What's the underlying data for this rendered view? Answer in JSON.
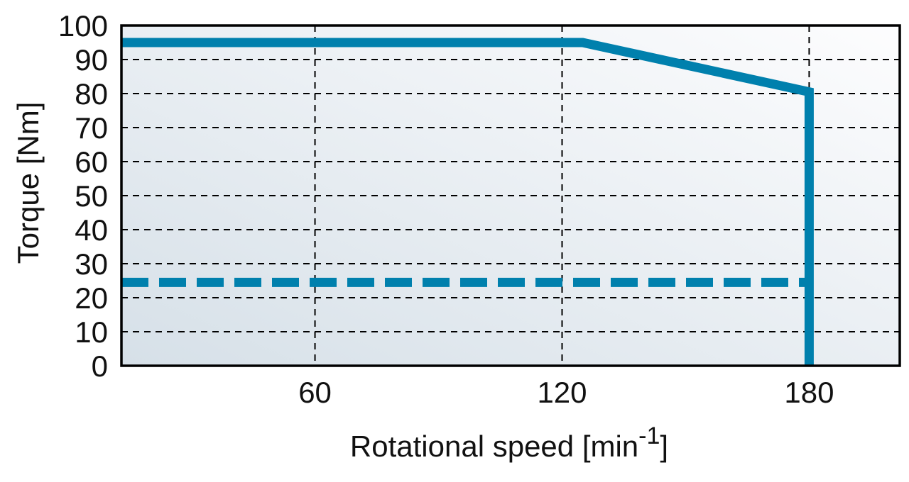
{
  "chart_data": {
    "type": "line",
    "title": "",
    "xlabel": "Rotational speed [min",
    "xlabel_superscript": "-1",
    "xlabel_suffix": "]",
    "ylabel": "Torque [Nm]",
    "xlim": [
      13,
      202
    ],
    "ylim": [
      0,
      100
    ],
    "x_ticks": [
      60,
      120,
      180
    ],
    "y_ticks": [
      0,
      10,
      20,
      30,
      40,
      50,
      60,
      70,
      80,
      90,
      100
    ],
    "grid": true,
    "series": [
      {
        "style": "solid",
        "color": "#0080ad",
        "points": [
          [
            13,
            95
          ],
          [
            125,
            95
          ],
          [
            180,
            80.5
          ],
          [
            180,
            0
          ]
        ]
      },
      {
        "style": "dashed",
        "color": "#0080ad",
        "points": [
          [
            13,
            24.5
          ],
          [
            180,
            24.5
          ]
        ]
      }
    ]
  }
}
